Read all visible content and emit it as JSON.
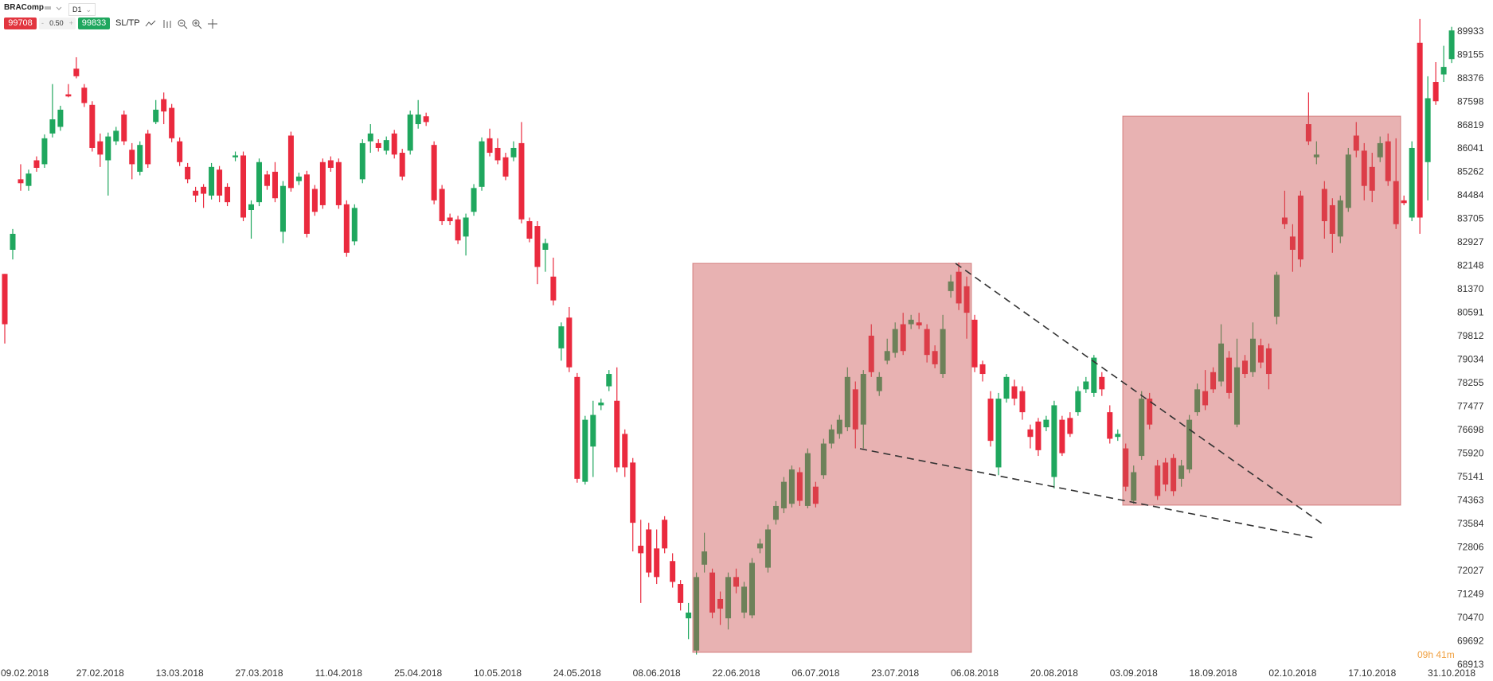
{
  "toolbar": {
    "symbol": "BRAComp",
    "timeframe": "D1",
    "sell": "99708",
    "spread": "0.50",
    "buy": "99833",
    "sltp": "SL/TP"
  },
  "countdown": "09h 41m",
  "chart_data": {
    "type": "candlestick",
    "up_color": "#1fa75e",
    "down_color": "#ea2a3e",
    "ylim": [
      68380,
      90980
    ],
    "yticks": [
      68913,
      69692,
      70470,
      71249,
      72027,
      72806,
      73584,
      74363,
      75141,
      75920,
      76698,
      77477,
      78255,
      79034,
      79812,
      80591,
      81370,
      82148,
      82927,
      83705,
      84484,
      85262,
      86041,
      86819,
      87598,
      88376,
      89155,
      89933
    ],
    "categories": [
      null,
      null,
      "09.02.2018",
      null,
      null,
      null,
      null,
      null,
      null,
      null,
      null,
      null,
      "27.02.2018",
      null,
      null,
      null,
      null,
      null,
      null,
      null,
      null,
      null,
      "13.03.2018",
      null,
      null,
      null,
      null,
      null,
      null,
      null,
      null,
      null,
      "27.03.2018",
      null,
      null,
      null,
      null,
      null,
      null,
      null,
      null,
      null,
      "11.04.2018",
      null,
      null,
      null,
      null,
      null,
      null,
      null,
      null,
      null,
      "25.04.2018",
      null,
      null,
      null,
      null,
      null,
      null,
      null,
      null,
      null,
      "10.05.2018",
      null,
      null,
      null,
      null,
      null,
      null,
      null,
      null,
      null,
      "24.05.2018",
      null,
      null,
      null,
      null,
      null,
      null,
      null,
      null,
      null,
      "08.06.2018",
      null,
      null,
      null,
      null,
      null,
      null,
      null,
      null,
      null,
      "22.06.2018",
      null,
      null,
      null,
      null,
      null,
      null,
      null,
      null,
      null,
      "06.07.2018",
      null,
      null,
      null,
      null,
      null,
      null,
      null,
      null,
      null,
      "23.07.2018",
      null,
      null,
      null,
      null,
      null,
      null,
      null,
      null,
      null,
      "06.08.2018",
      null,
      null,
      null,
      null,
      null,
      null,
      null,
      null,
      null,
      "20.08.2018",
      null,
      null,
      null,
      null,
      null,
      null,
      null,
      null,
      null,
      "03.09.2018",
      null,
      null,
      null,
      null,
      null,
      null,
      null,
      null,
      null,
      "18.09.2018",
      null,
      null,
      null,
      null,
      null,
      null,
      null,
      null,
      null,
      "02.10.2018",
      null,
      null,
      null,
      null,
      null,
      null,
      null,
      null,
      null,
      "17.10.2018",
      null,
      null,
      null,
      null,
      null,
      null,
      null,
      null,
      null,
      "31.10.2018"
    ],
    "open": [
      81890,
      82690,
      85030,
      84810,
      85660,
      85530,
      86550,
      86770,
      87850,
      88700,
      88070,
      87500,
      86290,
      85660,
      86290,
      87180,
      86010,
      85280,
      86550,
      86930,
      87690,
      87400,
      86290,
      85440,
      84650,
      84780,
      84490,
      85350,
      84780,
      85760,
      85820,
      84010,
      84270,
      85190,
      85280,
      83290,
      86480,
      84970,
      85190,
      84710,
      85600,
      85660,
      85600,
      84200,
      82970,
      85030,
      86290,
      86230,
      85980,
      86550,
      85910,
      85980,
      86860,
      87120,
      86170,
      84710,
      83760,
      83700,
      83130,
      83950,
      84780,
      86390,
      86070,
      85760,
      85760,
      86230,
      83640,
      83480,
      82690,
      81800,
      79420,
      80440,
      78470,
      74990,
      76160,
      77530,
      78160,
      77680,
      76580,
      75630,
      72870,
      73410,
      72780,
      73730,
      72360,
      71600,
      70460,
      69390,
      72240,
      71980,
      71100,
      70460,
      71830,
      70650,
      70560,
      72780,
      72140,
      73730,
      74110,
      74260,
      75310,
      74190,
      74830,
      75210,
      76260,
      76580,
      76800,
      78060,
      76890,
      79840,
      78000,
      79010,
      79270,
      80220,
      80220,
      80280,
      80060,
      79330,
      78570,
      81320,
      81960,
      81480,
      80370,
      78890,
      77750,
      75470,
      77750,
      78160,
      78000,
      76730,
      76990,
      76800,
      75150,
      77050,
      77110,
      77300,
      78060,
      77940,
      78470,
      77300,
      76480,
      76100,
      74360,
      75850,
      77750,
      75530,
      75630,
      75780,
      75090,
      75400,
      77300,
      78000,
      78630,
      78320,
      79110,
      76890,
      79010,
      78630,
      79520,
      79420,
      80470,
      83760,
      83130,
      84490,
      86860,
      85760,
      84710,
      84170,
      83130,
      84080,
      86480,
      85980,
      85440,
      85760,
      86290,
      84970,
      84330,
      83760,
      89560,
      85600,
      88260,
      88510,
      89020
    ],
    "high": [
      81890,
      83380,
      85530,
      85350,
      85790,
      86520,
      88190,
      87470,
      88190,
      89080,
      88190,
      87620,
      86550,
      86580,
      86770,
      87310,
      86230,
      86290,
      86670,
      87660,
      87910,
      87530,
      86420,
      85570,
      84780,
      84870,
      85570,
      85470,
      84900,
      85950,
      85950,
      84330,
      85720,
      85310,
      85600,
      84970,
      86610,
      85250,
      85310,
      84840,
      85720,
      85790,
      85720,
      84330,
      84200,
      86360,
      86860,
      86360,
      86450,
      86670,
      86040,
      87310,
      87660,
      87240,
      86290,
      84840,
      83890,
      83820,
      83890,
      84870,
      86420,
      86710,
      86390,
      85910,
      86290,
      86930,
      83760,
      83640,
      83060,
      82430,
      80280,
      80790,
      78600,
      77180,
      77680,
      77750,
      78700,
      78790,
      76730,
      75780,
      73730,
      73630,
      73410,
      73850,
      72620,
      71730,
      70970,
      71980,
      73300,
      72110,
      71350,
      71980,
      72110,
      71670,
      72460,
      73100,
      73570,
      74350,
      75150,
      75530,
      75470,
      76100,
      74990,
      76420,
      76890,
      77210,
      78790,
      78320,
      78700,
      80220,
      78630,
      79740,
      80280,
      80600,
      80530,
      80600,
      80220,
      79520,
      80530,
      81860,
      82270,
      81800,
      80530,
      79010,
      78000,
      77940,
      78570,
      78380,
      78160,
      76890,
      77110,
      77180,
      77680,
      77180,
      77300,
      78160,
      78470,
      79200,
      78630,
      77530,
      76730,
      76260,
      75530,
      78000,
      77940,
      75720,
      75780,
      75910,
      75720,
      77210,
      78250,
      78700,
      78790,
      80220,
      79330,
      79740,
      79200,
      80280,
      79740,
      79580,
      81960,
      84650,
      83540,
      84650,
      87910,
      86290,
      84970,
      84400,
      84490,
      86070,
      86930,
      86230,
      85910,
      86450,
      86550,
      86390,
      84490,
      86290,
      90350,
      88450,
      88920,
      89460,
      90090
    ],
    "low": [
      79580,
      82370,
      84650,
      84650,
      85280,
      85410,
      86420,
      86640,
      87750,
      88380,
      87430,
      85950,
      85440,
      84490,
      86170,
      86170,
      85030,
      85160,
      85410,
      86860,
      86860,
      86260,
      85470,
      84900,
      84270,
      84080,
      84360,
      84270,
      84140,
      85630,
      83640,
      83060,
      84140,
      84680,
      84270,
      82910,
      84620,
      84840,
      83100,
      83820,
      84050,
      85280,
      84050,
      82460,
      82840,
      84900,
      85910,
      85950,
      85850,
      85720,
      85000,
      85850,
      86710,
      86800,
      84200,
      83510,
      83510,
      82880,
      82500,
      83820,
      84650,
      85790,
      85530,
      85000,
      85630,
      83570,
      82940,
      81550,
      81960,
      80850,
      79010,
      78630,
      74960,
      74900,
      75150,
      77370,
      78000,
      75310,
      75150,
      72680,
      70970,
      71830,
      71600,
      72620,
      71480,
      70720,
      69770,
      69260,
      71980,
      70460,
      70240,
      70090,
      71290,
      70460,
      70460,
      72620,
      71980,
      73570,
      73950,
      74140,
      74190,
      74110,
      74140,
      75090,
      76100,
      76420,
      76670,
      76100,
      76100,
      78470,
      77840,
      78890,
      79110,
      79200,
      80060,
      80060,
      78950,
      78760,
      78440,
      81100,
      80690,
      79740,
      78630,
      78320,
      76160,
      75210,
      77620,
      77530,
      77050,
      76100,
      75850,
      76670,
      74770,
      75850,
      76480,
      77180,
      77940,
      77810,
      77840,
      76260,
      76350,
      74680,
      74260,
      75720,
      76730,
      74390,
      74680,
      74520,
      74830,
      75280,
      77180,
      77370,
      77940,
      78160,
      77750,
      76800,
      78440,
      78470,
      78760,
      78060,
      80220,
      83380,
      81960,
      82120,
      86170,
      85530,
      83060,
      82590,
      82910,
      83950,
      85760,
      84330,
      84270,
      85600,
      84810,
      83380,
      84170,
      83640,
      83220,
      84330,
      87500,
      88260,
      88890
    ],
    "close": [
      80220,
      83220,
      84900,
      85220,
      85410,
      86390,
      87020,
      87340,
      87780,
      88450,
      87560,
      86070,
      85850,
      86450,
      86640,
      86290,
      85530,
      86170,
      85530,
      87340,
      87280,
      86390,
      85600,
      85030,
      84490,
      84550,
      85440,
      84490,
      84270,
      85820,
      83760,
      84200,
      85600,
      84810,
      84400,
      84810,
      84740,
      85120,
      83220,
      83950,
      84170,
      85410,
      84170,
      82590,
      84080,
      86230,
      86550,
      86070,
      86330,
      85850,
      85120,
      87180,
      87180,
      86930,
      84330,
      83640,
      83640,
      83000,
      83760,
      84740,
      86290,
      85910,
      85660,
      85120,
      86070,
      83700,
      83060,
      82120,
      82910,
      81010,
      80150,
      78790,
      75090,
      77050,
      77210,
      77620,
      78570,
      75470,
      75470,
      73630,
      72620,
      71980,
      71830,
      72780,
      71670,
      70970,
      70650,
      71830,
      72680,
      70650,
      70780,
      71830,
      71510,
      71510,
      72300,
      72940,
      73410,
      74190,
      74990,
      75400,
      74360,
      75940,
      74260,
      76260,
      76730,
      77050,
      78470,
      76730,
      78570,
      78630,
      78470,
      79330,
      80060,
      79330,
      80370,
      80180,
      79200,
      78890,
      80060,
      81640,
      80910,
      80600,
      78790,
      78570,
      76350,
      77750,
      78470,
      77750,
      77300,
      76480,
      76040,
      77050,
      77530,
      75940,
      76580,
      78000,
      78320,
      79110,
      78060,
      76420,
      76580,
      74830,
      75310,
      77750,
      76890,
      74520,
      74900,
      74680,
      75530,
      77050,
      78060,
      77530,
      78060,
      79580,
      77940,
      78790,
      78570,
      79740,
      78950,
      78570,
      81860,
      83540,
      82690,
      82370,
      86290,
      85850,
      83640,
      83220,
      84330,
      85850,
      85980,
      84810,
      84650,
      86230,
      84970,
      83540,
      84240,
      86070,
      83760,
      87720,
      87620,
      88760,
      89970
    ]
  }
}
